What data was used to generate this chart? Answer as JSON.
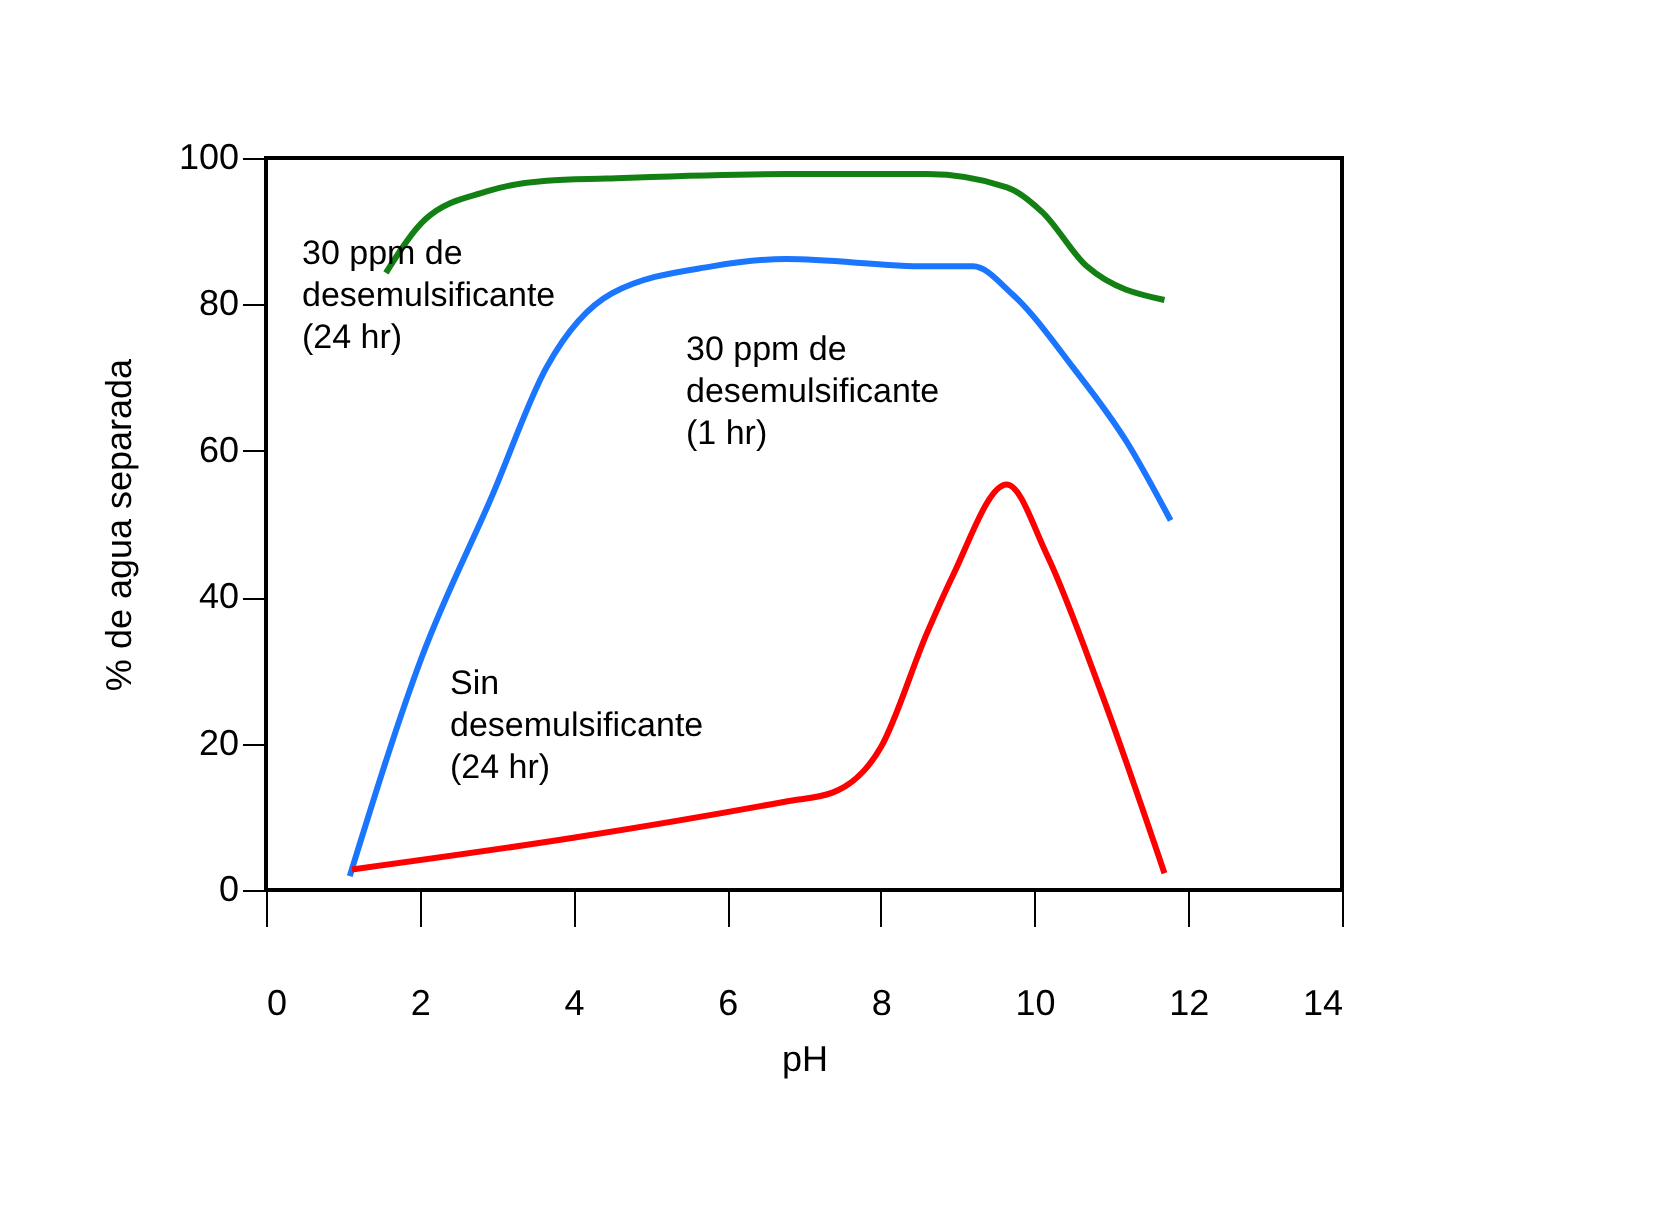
{
  "chart_data": {
    "type": "line",
    "xlabel": "pH",
    "ylabel": "% de agua separada",
    "xlim": [
      0,
      14
    ],
    "xticks": [
      0,
      2,
      4,
      6,
      8,
      10,
      12,
      14
    ],
    "ylim": [
      0,
      100
    ],
    "yticks": [
      0,
      20,
      40,
      60,
      80,
      100
    ],
    "grid": false,
    "marker": "none",
    "line_style": "solid",
    "series": [
      {
        "color": "#138013",
        "x": [
          1.56,
          2.08,
          2.86,
          3.65,
          4.43,
          6.77,
          8.6,
          9.64,
          10.1,
          10.68,
          11.69
        ],
        "values": [
          84.3,
          91.7,
          95.4,
          96.9,
          97.2,
          97.8,
          97.8,
          96,
          92.6,
          85.2,
          80.6
        ]
      },
      {
        "color": "#1a75ff",
        "x": [
          1.09,
          2.03,
          2.94,
          3.65,
          4.5,
          5.8,
          6.77,
          8.6,
          9.2,
          9.7,
          10.5,
          11.2,
          11.77
        ],
        "values": [
          1.9,
          31.9,
          53.8,
          71.4,
          81.5,
          85.2,
          86.2,
          85.2,
          85.2,
          81.5,
          71.4,
          61.2,
          50.5
        ]
      },
      {
        "color": "#ff0000",
        "x": [
          1.12,
          4.04,
          6.77,
          7.37,
          8.0,
          8.6,
          8.93,
          9.64,
          10.16,
          10.86,
          11.69
        ],
        "values": [
          2.8,
          7.2,
          12.1,
          13.3,
          19.5,
          35.1,
          42.8,
          55.4,
          45.8,
          27.2,
          2.3
        ]
      }
    ],
    "annotations": [
      "30 ppm de\ndesemulsificante\n (24 hr)",
      "30 ppm de\ndesemulsificante\n                (1 hr)",
      "Sin\ndesemulsificante\n         (24 hr)"
    ]
  }
}
